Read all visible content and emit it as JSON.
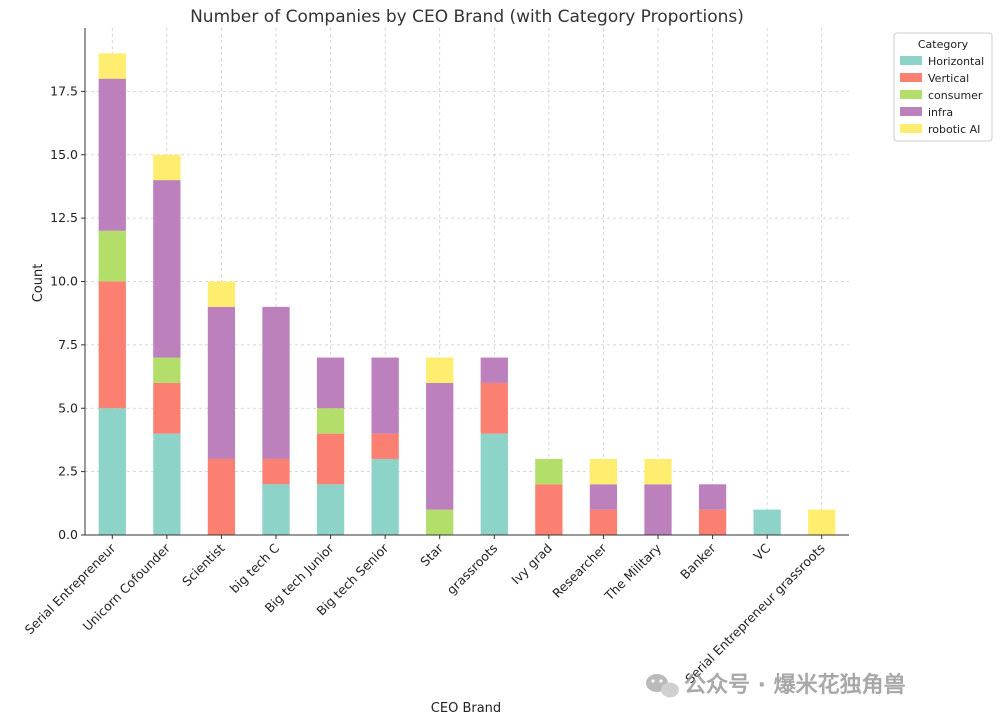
{
  "chart_data": {
    "type": "bar",
    "stacked": true,
    "title": "Number of Companies by CEO Brand (with Category Proportions)",
    "xlabel": "CEO Brand",
    "ylabel": "Count",
    "ylim": [
      0,
      20
    ],
    "yticks": [
      "0.0",
      "2.5",
      "5.0",
      "7.5",
      "10.0",
      "12.5",
      "15.0",
      "17.5"
    ],
    "grid": true,
    "legend_title": "Category",
    "legend_position": "top-right",
    "categories": [
      "Serial Entrepreneur",
      "Unicorn Cofounder",
      "Scientist",
      "big tech C",
      "Big tech Junior",
      "Big tech Senior",
      "Star",
      "grassroots",
      "Ivy grad",
      "Researcher",
      "The Military",
      "Banker",
      "VC",
      "Serial Entrepreneur grassroots"
    ],
    "series": [
      {
        "name": "Horizontal",
        "color": "#8dd3c7",
        "values": [
          5,
          4,
          0,
          2,
          2,
          3,
          0,
          4,
          0,
          0,
          0,
          0,
          1,
          0
        ]
      },
      {
        "name": "Vertical",
        "color": "#fb8072",
        "values": [
          5,
          2,
          3,
          1,
          2,
          1,
          0,
          2,
          2,
          1,
          0,
          1,
          0,
          0
        ]
      },
      {
        "name": "consumer",
        "color": "#b3de69",
        "values": [
          2,
          1,
          0,
          0,
          1,
          0,
          1,
          0,
          1,
          0,
          0,
          0,
          0,
          0
        ]
      },
      {
        "name": "infra",
        "color": "#bc80bd",
        "values": [
          6,
          7,
          6,
          6,
          2,
          3,
          5,
          1,
          0,
          1,
          2,
          1,
          0,
          0
        ]
      },
      {
        "name": "robotic AI",
        "color": "#ffed6f",
        "values": [
          1,
          1,
          1,
          0,
          0,
          0,
          1,
          0,
          0,
          1,
          1,
          0,
          0,
          1
        ]
      }
    ]
  },
  "watermark": {
    "text": "公众号 · 爆米花独角兽",
    "icon": "wechat-icon"
  }
}
